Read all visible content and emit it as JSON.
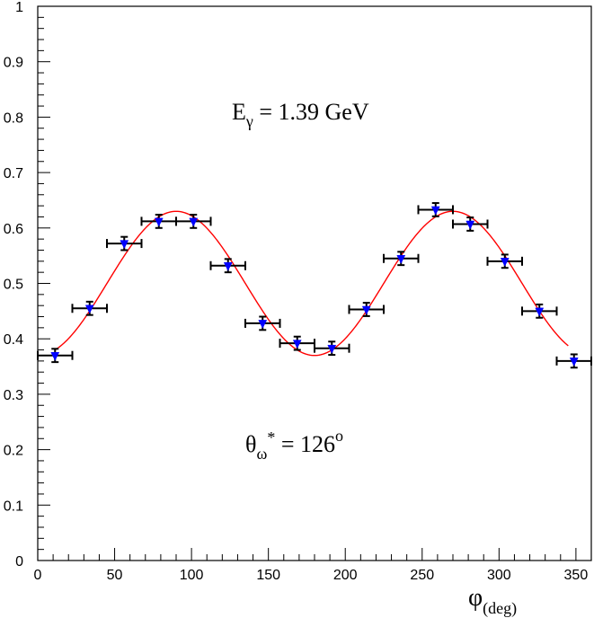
{
  "chart_data": {
    "type": "scatter",
    "xlabel": "φ",
    "xlabel_sub": "(deg)",
    "ylabel": "",
    "xlim": [
      0,
      360
    ],
    "ylim": [
      0,
      1
    ],
    "x_ticks": [
      0,
      50,
      100,
      150,
      200,
      250,
      300,
      350
    ],
    "y_ticks": [
      0,
      0.1,
      0.2,
      0.3,
      0.4,
      0.5,
      0.6,
      0.7,
      0.8,
      0.9,
      1
    ],
    "y_tick_labels": [
      "0",
      "0.1",
      "0.2",
      "0.3",
      "0.4",
      "0.5",
      "0.6",
      "0.7",
      "0.8",
      "0.9",
      "1"
    ],
    "grid": false,
    "annotations": {
      "energy": {
        "base": "E",
        "sub": "γ",
        "text": " = 1.39 GeV"
      },
      "angle": {
        "base": "θ",
        "sub": "ω",
        "sup": "*",
        "text": " = 126",
        "sup2": "o"
      }
    },
    "colors": {
      "marker": "#0000ff",
      "fit": "#ff0000",
      "errorbar": "#000000",
      "axis": "#000000"
    },
    "series": [
      {
        "marker": "triangle-down",
        "x_err": 11.25,
        "points": [
          {
            "x": 11.25,
            "y": 0.37,
            "yerr": 0.012
          },
          {
            "x": 33.75,
            "y": 0.455,
            "yerr": 0.012
          },
          {
            "x": 56.25,
            "y": 0.572,
            "yerr": 0.012
          },
          {
            "x": 78.75,
            "y": 0.612,
            "yerr": 0.012
          },
          {
            "x": 101.25,
            "y": 0.612,
            "yerr": 0.012
          },
          {
            "x": 123.75,
            "y": 0.532,
            "yerr": 0.012
          },
          {
            "x": 146.25,
            "y": 0.428,
            "yerr": 0.012
          },
          {
            "x": 168.75,
            "y": 0.392,
            "yerr": 0.012
          },
          {
            "x": 191.25,
            "y": 0.383,
            "yerr": 0.012
          },
          {
            "x": 213.75,
            "y": 0.453,
            "yerr": 0.012
          },
          {
            "x": 236.25,
            "y": 0.545,
            "yerr": 0.012
          },
          {
            "x": 258.75,
            "y": 0.633,
            "yerr": 0.012
          },
          {
            "x": 281.25,
            "y": 0.607,
            "yerr": 0.012
          },
          {
            "x": 303.75,
            "y": 0.54,
            "yerr": 0.012
          },
          {
            "x": 326.25,
            "y": 0.45,
            "yerr": 0.012
          },
          {
            "x": 348.75,
            "y": 0.36,
            "yerr": 0.012
          }
        ]
      }
    ],
    "fit": {
      "type": "curve",
      "x_range": [
        11,
        345
      ],
      "y_mean": 0.5,
      "amplitude": -0.13
    }
  }
}
